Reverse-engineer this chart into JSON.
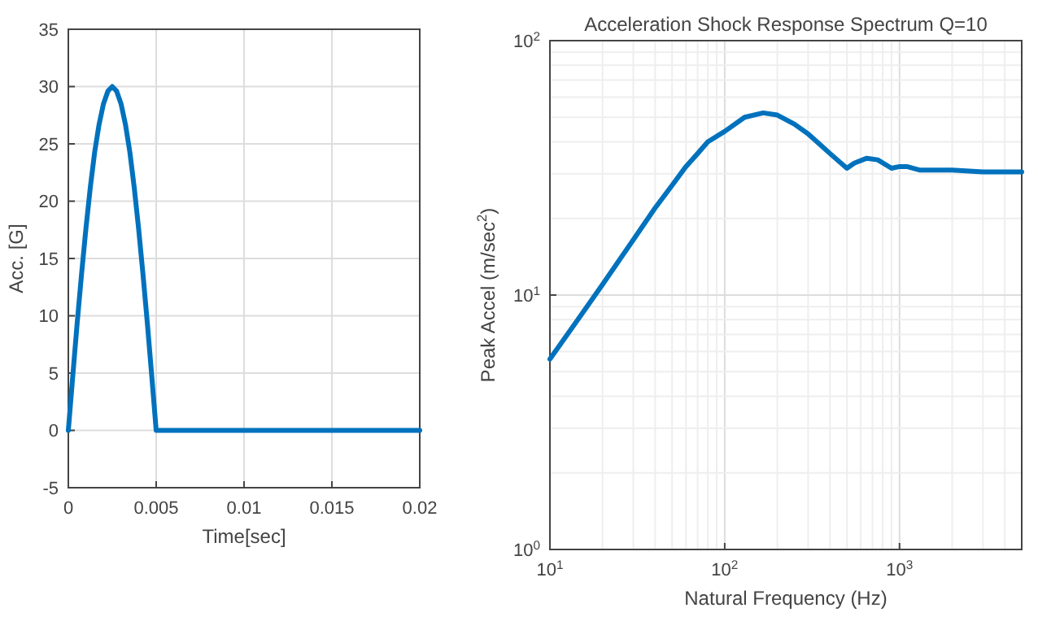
{
  "chart_data": [
    {
      "type": "line",
      "xlabel": "Time[sec]",
      "ylabel": "Acc. [G]",
      "xlim": [
        0,
        0.02
      ],
      "ylim": [
        -5,
        35
      ],
      "xticks": [
        0,
        0.005,
        0.01,
        0.015,
        0.02
      ],
      "yticks": [
        -5,
        0,
        5,
        10,
        15,
        20,
        25,
        30,
        35
      ],
      "grid": true,
      "line_style": "solid",
      "series": [
        {
          "color": "#0072bd",
          "x": [
            0,
            0.00025,
            0.0005,
            0.00075,
            0.001,
            0.00125,
            0.0015,
            0.00175,
            0.002,
            0.00225,
            0.0025,
            0.00275,
            0.003,
            0.00325,
            0.0035,
            0.00375,
            0.004,
            0.00425,
            0.0045,
            0.00475,
            0.005,
            0.02
          ],
          "values": [
            0,
            4.7,
            9.3,
            13.6,
            17.6,
            21.2,
            24.3,
            26.7,
            28.5,
            29.6,
            30,
            29.6,
            28.5,
            26.7,
            24.3,
            21.2,
            17.6,
            13.6,
            9.3,
            4.7,
            0,
            0
          ]
        }
      ]
    },
    {
      "type": "line",
      "title": "Acceleration Shock Response Spectrum Q=10",
      "xlabel": "Natural Frequency (Hz)",
      "ylabel": "Peak Accel (m/sec$^{2}$)",
      "log": "xy",
      "xlim": [
        10,
        5000
      ],
      "ylim": [
        1,
        100
      ],
      "xticks": [
        {
          "value": 10,
          "label": "10$^{1}$"
        },
        {
          "value": 100,
          "label": "10$^{2}$"
        },
        {
          "value": 1000,
          "label": "10$^{3}$"
        }
      ],
      "yticks": [
        {
          "value": 1,
          "label": "10$^{0}$"
        },
        {
          "value": 10,
          "label": "10$^{1}$"
        },
        {
          "value": 100,
          "label": "10$^{2}$"
        }
      ],
      "grid": true,
      "line_style": "solid",
      "series": [
        {
          "color": "#0072bd",
          "x": [
            10,
            15,
            20,
            30,
            40,
            50,
            60,
            70,
            80,
            100,
            130,
            166,
            200,
            250,
            300,
            400,
            500,
            550,
            650,
            750,
            900,
            1000,
            1100,
            1300,
            1500,
            2000,
            3000,
            5000
          ],
          "values": [
            5.6,
            8.3,
            11,
            16.5,
            22,
            27,
            32,
            36,
            40,
            44,
            50,
            52,
            51,
            47,
            43,
            36,
            31.5,
            33,
            34.5,
            34,
            31.5,
            32,
            32,
            31,
            31,
            31,
            30.5,
            30.5
          ]
        }
      ]
    }
  ]
}
